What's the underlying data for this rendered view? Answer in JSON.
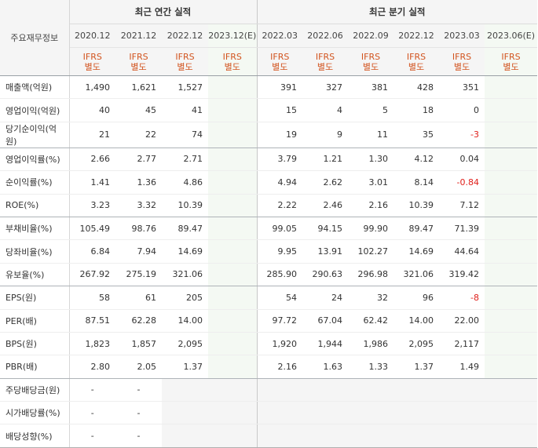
{
  "header": {
    "corner_label": "주요재무정보",
    "annual_title": "최근 연간 실적",
    "quarter_title": "최근 분기 실적",
    "annual_periods": [
      "2020.12",
      "2021.12",
      "2022.12",
      "2023.12(E)"
    ],
    "quarter_periods": [
      "2022.03",
      "2022.06",
      "2022.09",
      "2022.12",
      "2023.03",
      "2023.06(E)"
    ],
    "ifrs_line1": "IFRS",
    "ifrs_line2": "별도"
  },
  "rows": [
    {
      "label": "매출액(억원)",
      "annual": [
        "1,490",
        "1,621",
        "1,527",
        ""
      ],
      "quarter": [
        "391",
        "327",
        "381",
        "428",
        "351",
        ""
      ]
    },
    {
      "label": "영업이익(억원)",
      "annual": [
        "40",
        "45",
        "41",
        ""
      ],
      "quarter": [
        "15",
        "4",
        "5",
        "18",
        "0",
        ""
      ]
    },
    {
      "label": "당기순이익(억원)",
      "annual": [
        "21",
        "22",
        "74",
        ""
      ],
      "quarter": [
        "19",
        "9",
        "11",
        "35",
        "-3",
        ""
      ]
    },
    {
      "label": "영업이익률(%)",
      "annual": [
        "2.66",
        "2.77",
        "2.71",
        ""
      ],
      "quarter": [
        "3.79",
        "1.21",
        "1.30",
        "4.12",
        "0.04",
        ""
      ]
    },
    {
      "label": "순이익률(%)",
      "annual": [
        "1.41",
        "1.36",
        "4.86",
        ""
      ],
      "quarter": [
        "4.94",
        "2.62",
        "3.01",
        "8.14",
        "-0.84",
        ""
      ]
    },
    {
      "label": "ROE(%)",
      "annual": [
        "3.23",
        "3.32",
        "10.39",
        ""
      ],
      "quarter": [
        "2.22",
        "2.46",
        "2.16",
        "10.39",
        "7.12",
        ""
      ]
    },
    {
      "label": "부채비율(%)",
      "annual": [
        "105.49",
        "98.76",
        "89.47",
        ""
      ],
      "quarter": [
        "99.05",
        "94.15",
        "99.90",
        "89.47",
        "71.39",
        ""
      ]
    },
    {
      "label": "당좌비율(%)",
      "annual": [
        "6.84",
        "7.94",
        "14.69",
        ""
      ],
      "quarter": [
        "9.95",
        "13.91",
        "102.27",
        "14.69",
        "44.64",
        ""
      ]
    },
    {
      "label": "유보율(%)",
      "annual": [
        "267.92",
        "275.19",
        "321.06",
        ""
      ],
      "quarter": [
        "285.90",
        "290.63",
        "296.98",
        "321.06",
        "319.42",
        ""
      ]
    },
    {
      "label": "EPS(원)",
      "annual": [
        "58",
        "61",
        "205",
        ""
      ],
      "quarter": [
        "54",
        "24",
        "32",
        "96",
        "-8",
        ""
      ]
    },
    {
      "label": "PER(배)",
      "annual": [
        "87.51",
        "62.28",
        "14.00",
        ""
      ],
      "quarter": [
        "97.72",
        "67.04",
        "62.42",
        "14.00",
        "22.00",
        ""
      ]
    },
    {
      "label": "BPS(원)",
      "annual": [
        "1,823",
        "1,857",
        "2,095",
        ""
      ],
      "quarter": [
        "1,920",
        "1,944",
        "1,986",
        "2,095",
        "2,117",
        ""
      ]
    },
    {
      "label": "PBR(배)",
      "annual": [
        "2.80",
        "2.05",
        "1.37",
        ""
      ],
      "quarter": [
        "2.16",
        "1.63",
        "1.33",
        "1.37",
        "1.49",
        ""
      ]
    },
    {
      "label": "주당배당금(원)",
      "annual": [
        "-",
        "-",
        "",
        ""
      ],
      "quarter": [
        "",
        "",
        "",
        "",
        "",
        ""
      ]
    },
    {
      "label": "시가배당률(%)",
      "annual": [
        "-",
        "-",
        "",
        ""
      ],
      "quarter": [
        "",
        "",
        "",
        "",
        "",
        ""
      ]
    },
    {
      "label": "배당성향(%)",
      "annual": [
        "-",
        "-",
        "",
        ""
      ],
      "quarter": [
        "",
        "",
        "",
        "",
        "",
        ""
      ]
    }
  ],
  "group_break_after_rows": [
    2,
    5,
    8,
    12
  ],
  "colors": {
    "ifrs": "#d2541f",
    "negative": "#e0201b",
    "estimate_bg": "#f4f9f3",
    "header_bg": "#f5f5f5"
  }
}
